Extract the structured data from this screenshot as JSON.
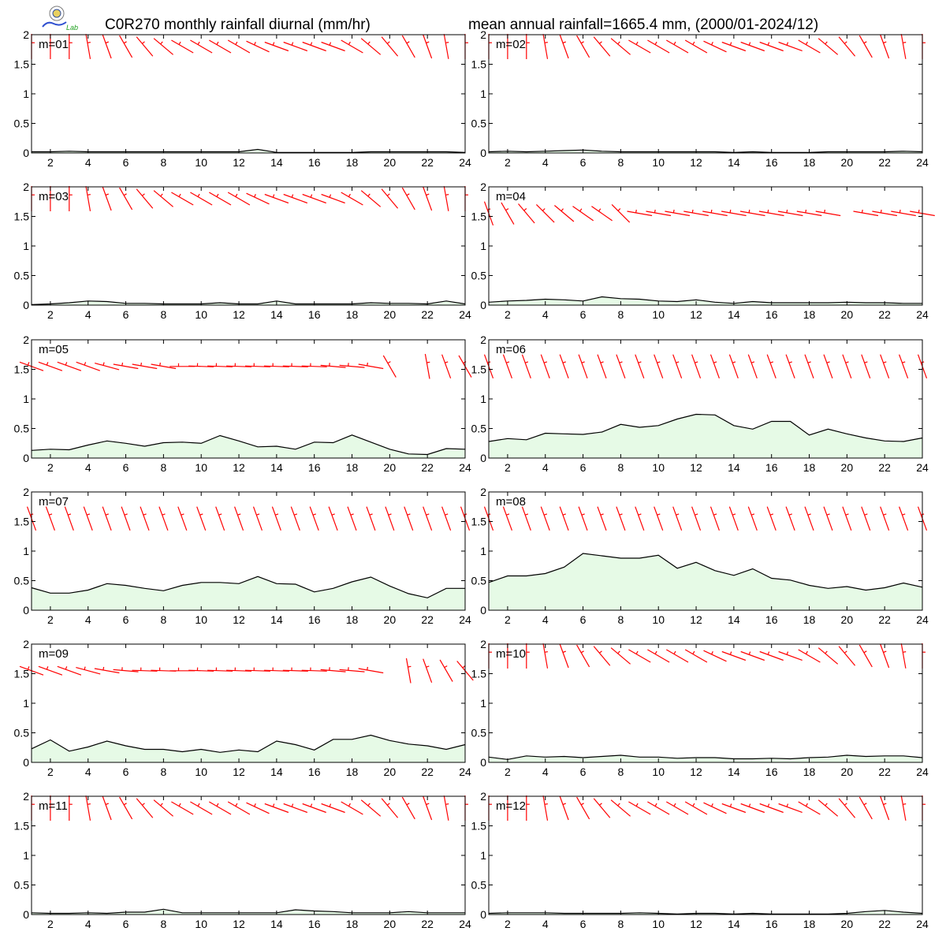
{
  "titles": {
    "left": "C0R270 monthly rainfall diurnal (mm/hr)",
    "right": "mean annual rainfall=1665.4 mm, (2000/01-2024/12)"
  },
  "logo": {
    "icon": "lab-logo-icon",
    "text": "Lab"
  },
  "colors": {
    "fill": "#e6fae6",
    "line": "#000000",
    "wind": "#ff0000",
    "axis": "#000000"
  },
  "axes": {
    "xlim": [
      1,
      24
    ],
    "ylim": [
      0,
      2
    ],
    "xticks": [
      "2",
      "4",
      "6",
      "8",
      "10",
      "12",
      "14",
      "16",
      "18",
      "20",
      "22",
      "24"
    ],
    "yticks": [
      "0",
      "0.5",
      "1",
      "1.5",
      "2"
    ],
    "grid": false
  },
  "chart_data": [
    {
      "type": "area",
      "label": "m=01",
      "x": [
        1,
        2,
        3,
        4,
        5,
        6,
        7,
        8,
        9,
        10,
        11,
        12,
        13,
        14,
        15,
        16,
        17,
        18,
        19,
        20,
        21,
        22,
        23,
        24
      ],
      "values": [
        0.02,
        0.02,
        0.03,
        0.02,
        0.02,
        0.02,
        0.02,
        0.02,
        0.02,
        0.02,
        0.02,
        0.02,
        0.06,
        0.01,
        0.01,
        0.01,
        0.01,
        0.01,
        0.02,
        0.02,
        0.02,
        0.02,
        0.02,
        0.01
      ],
      "wind_dir": [
        0,
        0,
        0,
        10,
        20,
        30,
        40,
        50,
        60,
        60,
        60,
        60,
        65,
        70,
        70,
        70,
        70,
        60,
        50,
        40,
        30,
        20,
        10,
        0
      ]
    },
    {
      "type": "area",
      "label": "m=02",
      "x": [
        1,
        2,
        3,
        4,
        5,
        6,
        7,
        8,
        9,
        10,
        11,
        12,
        13,
        14,
        15,
        16,
        17,
        18,
        19,
        20,
        21,
        22,
        23,
        24
      ],
      "values": [
        0.02,
        0.03,
        0.02,
        0.03,
        0.04,
        0.05,
        0.03,
        0.02,
        0.02,
        0.02,
        0.02,
        0.02,
        0.02,
        0.01,
        0.02,
        0.01,
        0.01,
        0.01,
        0.02,
        0.02,
        0.02,
        0.02,
        0.03,
        0.02
      ],
      "wind_dir": [
        0,
        0,
        0,
        10,
        20,
        30,
        40,
        50,
        60,
        60,
        60,
        60,
        65,
        70,
        70,
        70,
        70,
        60,
        50,
        40,
        30,
        20,
        10,
        0
      ]
    },
    {
      "type": "area",
      "label": "m=03",
      "x": [
        1,
        2,
        3,
        4,
        5,
        6,
        7,
        8,
        9,
        10,
        11,
        12,
        13,
        14,
        15,
        16,
        17,
        18,
        19,
        20,
        21,
        22,
        23,
        24
      ],
      "values": [
        0.01,
        0.02,
        0.04,
        0.07,
        0.06,
        0.03,
        0.03,
        0.02,
        0.02,
        0.02,
        0.04,
        0.02,
        0.02,
        0.07,
        0.02,
        0.02,
        0.02,
        0.02,
        0.04,
        0.03,
        0.03,
        0.02,
        0.07,
        0.02
      ],
      "wind_dir": [
        0,
        0,
        0,
        10,
        20,
        30,
        40,
        50,
        60,
        60,
        60,
        60,
        65,
        70,
        70,
        70,
        70,
        60,
        50,
        40,
        30,
        20,
        10,
        0
      ]
    },
    {
      "type": "area",
      "label": "m=04",
      "x": [
        1,
        2,
        3,
        4,
        5,
        6,
        7,
        8,
        9,
        10,
        11,
        12,
        13,
        14,
        15,
        16,
        17,
        18,
        19,
        20,
        21,
        22,
        23,
        24
      ],
      "values": [
        0.05,
        0.07,
        0.08,
        0.1,
        0.09,
        0.07,
        0.14,
        0.11,
        0.1,
        0.07,
        0.06,
        0.09,
        0.05,
        0.03,
        0.06,
        0.04,
        0.04,
        0.04,
        0.04,
        0.05,
        0.04,
        0.04,
        0.03,
        0.03
      ],
      "wind_dir": [
        20,
        30,
        40,
        45,
        50,
        55,
        55,
        45,
        80,
        80,
        80,
        80,
        80,
        80,
        80,
        80,
        80,
        80,
        80,
        null,
        80,
        80,
        80,
        80
      ]
    },
    {
      "type": "area",
      "label": "m=05",
      "x": [
        1,
        2,
        3,
        4,
        5,
        6,
        7,
        8,
        9,
        10,
        11,
        12,
        13,
        14,
        15,
        16,
        17,
        18,
        19,
        20,
        21,
        22,
        23,
        24
      ],
      "values": [
        0.13,
        0.15,
        0.14,
        0.22,
        0.29,
        0.25,
        0.2,
        0.26,
        0.27,
        0.25,
        0.38,
        0.29,
        0.19,
        0.2,
        0.15,
        0.27,
        0.26,
        0.39,
        0.27,
        0.15,
        0.07,
        0.06,
        0.16,
        0.15
      ],
      "wind_dir": [
        70,
        70,
        70,
        70,
        75,
        80,
        80,
        80,
        90,
        88,
        88,
        88,
        88,
        88,
        88,
        88,
        85,
        85,
        80,
        30,
        null,
        10,
        20,
        30
      ]
    },
    {
      "type": "area",
      "label": "m=06",
      "x": [
        1,
        2,
        3,
        4,
        5,
        6,
        7,
        8,
        9,
        10,
        11,
        12,
        13,
        14,
        15,
        16,
        17,
        18,
        19,
        20,
        21,
        22,
        23,
        24
      ],
      "values": [
        0.28,
        0.33,
        0.31,
        0.42,
        0.41,
        0.4,
        0.44,
        0.57,
        0.52,
        0.55,
        0.66,
        0.74,
        0.73,
        0.55,
        0.49,
        0.62,
        0.62,
        0.39,
        0.49,
        0.41,
        0.34,
        0.29,
        0.28,
        0.34
      ],
      "wind_dir": [
        20,
        20,
        20,
        20,
        20,
        20,
        20,
        20,
        20,
        20,
        20,
        20,
        20,
        20,
        20,
        20,
        20,
        20,
        20,
        20,
        20,
        20,
        20,
        20
      ]
    },
    {
      "type": "area",
      "label": "m=07",
      "x": [
        1,
        2,
        3,
        4,
        5,
        6,
        7,
        8,
        9,
        10,
        11,
        12,
        13,
        14,
        15,
        16,
        17,
        18,
        19,
        20,
        21,
        22,
        23,
        24
      ],
      "values": [
        0.38,
        0.29,
        0.29,
        0.34,
        0.45,
        0.42,
        0.37,
        0.33,
        0.42,
        0.47,
        0.47,
        0.45,
        0.57,
        0.45,
        0.44,
        0.31,
        0.37,
        0.48,
        0.56,
        0.41,
        0.28,
        0.21,
        0.37,
        0.37
      ],
      "wind_dir": [
        20,
        20,
        20,
        20,
        20,
        20,
        20,
        20,
        20,
        20,
        20,
        20,
        20,
        20,
        20,
        20,
        20,
        20,
        20,
        20,
        20,
        20,
        20,
        20
      ]
    },
    {
      "type": "area",
      "label": "m=08",
      "x": [
        1,
        2,
        3,
        4,
        5,
        6,
        7,
        8,
        9,
        10,
        11,
        12,
        13,
        14,
        15,
        16,
        17,
        18,
        19,
        20,
        21,
        22,
        23,
        24
      ],
      "values": [
        0.47,
        0.58,
        0.58,
        0.62,
        0.73,
        0.96,
        0.92,
        0.88,
        0.88,
        0.93,
        0.71,
        0.81,
        0.67,
        0.59,
        0.7,
        0.54,
        0.51,
        0.42,
        0.37,
        0.4,
        0.34,
        0.38,
        0.46,
        0.39
      ],
      "wind_dir": [
        20,
        20,
        20,
        20,
        20,
        20,
        20,
        20,
        20,
        20,
        20,
        20,
        20,
        20,
        20,
        20,
        20,
        20,
        20,
        20,
        20,
        20,
        20,
        20
      ]
    },
    {
      "type": "area",
      "label": "m=09",
      "x": [
        1,
        2,
        3,
        4,
        5,
        6,
        7,
        8,
        9,
        10,
        11,
        12,
        13,
        14,
        15,
        16,
        17,
        18,
        19,
        20,
        21,
        22,
        23,
        24
      ],
      "values": [
        0.23,
        0.38,
        0.19,
        0.26,
        0.36,
        0.28,
        0.22,
        0.22,
        0.18,
        0.22,
        0.17,
        0.21,
        0.18,
        0.36,
        0.3,
        0.21,
        0.39,
        0.39,
        0.46,
        0.37,
        0.31,
        0.28,
        0.22,
        0.3
      ],
      "wind_dir": [
        70,
        70,
        70,
        75,
        80,
        85,
        88,
        88,
        90,
        88,
        88,
        88,
        88,
        88,
        88,
        88,
        85,
        85,
        80,
        null,
        10,
        20,
        30,
        40
      ]
    },
    {
      "type": "area",
      "label": "m=10",
      "x": [
        1,
        2,
        3,
        4,
        5,
        6,
        7,
        8,
        9,
        10,
        11,
        12,
        13,
        14,
        15,
        16,
        17,
        18,
        19,
        20,
        21,
        22,
        23,
        24
      ],
      "values": [
        0.09,
        0.05,
        0.11,
        0.09,
        0.1,
        0.08,
        0.1,
        0.12,
        0.09,
        0.09,
        0.07,
        0.08,
        0.08,
        0.06,
        0.06,
        0.07,
        0.06,
        0.08,
        0.09,
        0.12,
        0.1,
        0.11,
        0.11,
        0.08
      ],
      "wind_dir": [
        0,
        0,
        0,
        10,
        20,
        30,
        40,
        50,
        60,
        60,
        60,
        60,
        65,
        70,
        70,
        70,
        70,
        60,
        50,
        40,
        30,
        20,
        10,
        0
      ]
    },
    {
      "type": "area",
      "label": "m=11",
      "x": [
        1,
        2,
        3,
        4,
        5,
        6,
        7,
        8,
        9,
        10,
        11,
        12,
        13,
        14,
        15,
        16,
        17,
        18,
        19,
        20,
        21,
        22,
        23,
        24
      ],
      "values": [
        0.03,
        0.02,
        0.02,
        0.03,
        0.02,
        0.04,
        0.04,
        0.09,
        0.03,
        0.03,
        0.03,
        0.03,
        0.03,
        0.03,
        0.08,
        0.06,
        0.05,
        0.03,
        0.03,
        0.03,
        0.05,
        0.03,
        0.03,
        0.03
      ],
      "wind_dir": [
        0,
        0,
        0,
        10,
        20,
        30,
        40,
        50,
        60,
        60,
        60,
        60,
        65,
        70,
        70,
        70,
        70,
        60,
        50,
        40,
        30,
        20,
        10,
        0
      ]
    },
    {
      "type": "area",
      "label": "m=12",
      "x": [
        1,
        2,
        3,
        4,
        5,
        6,
        7,
        8,
        9,
        10,
        11,
        12,
        13,
        14,
        15,
        16,
        17,
        18,
        19,
        20,
        21,
        22,
        23,
        24
      ],
      "values": [
        0.02,
        0.03,
        0.03,
        0.03,
        0.02,
        0.02,
        0.02,
        0.02,
        0.03,
        0.02,
        0.01,
        0.02,
        0.02,
        0.01,
        0.02,
        0.01,
        0.01,
        0.01,
        0.01,
        0.02,
        0.05,
        0.07,
        0.04,
        0.02
      ],
      "wind_dir": [
        0,
        0,
        0,
        10,
        20,
        30,
        40,
        50,
        60,
        60,
        60,
        60,
        65,
        70,
        70,
        70,
        70,
        60,
        50,
        40,
        30,
        20,
        10,
        0
      ]
    }
  ]
}
